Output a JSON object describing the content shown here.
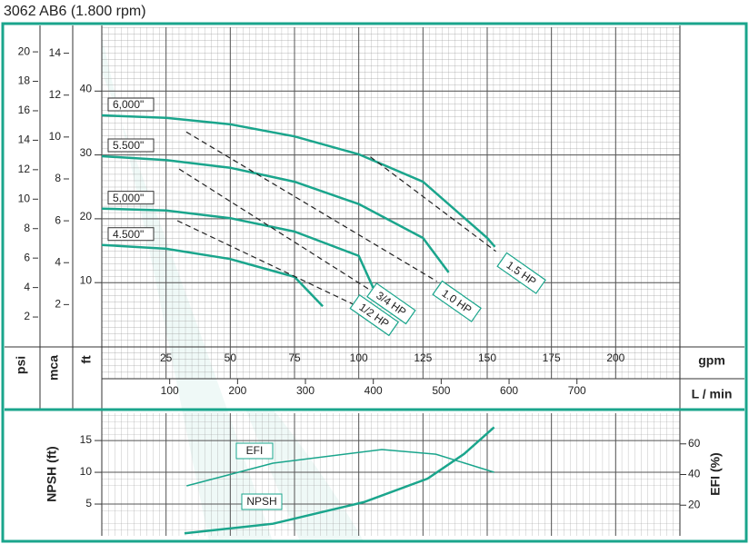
{
  "chart_data": [
    {
      "type": "line",
      "title": "3062 AB6 (1.800 rpm)",
      "color": "#1aa58c",
      "xlabel": "gpm",
      "xlim": [
        0,
        225
      ],
      "xticks": [
        25,
        50,
        75,
        100,
        125,
        150,
        175,
        200
      ],
      "ylabel": "ft",
      "ylim": [
        0,
        50
      ],
      "yticks": [
        10,
        20,
        30,
        40
      ],
      "psi_axis": {
        "label": "psi",
        "lim": [
          0,
          21.67
        ],
        "ticks": [
          2,
          4,
          6,
          8,
          10,
          12,
          14,
          16,
          18,
          20
        ]
      },
      "mca_axis": {
        "label": "mca",
        "lim": [
          0,
          15.24
        ],
        "ticks": [
          2,
          4,
          6,
          8,
          10,
          12,
          14
        ]
      },
      "lpm_axis": {
        "label": "L / min",
        "lim": [
          0,
          851.7
        ],
        "ticks": [
          100,
          200,
          300,
          400,
          500,
          600,
          700
        ]
      },
      "grid": true,
      "series": [
        {
          "name": "6,000\"",
          "color": "#1aa58c",
          "x": [
            0,
            25,
            50,
            75,
            100,
            125,
            150,
            153
          ],
          "values": [
            36.2,
            35.8,
            34.8,
            32.9,
            30.1,
            25.8,
            17.0,
            15.6
          ]
        },
        {
          "name": "5.500\"",
          "color": "#1aa58c",
          "x": [
            0,
            25,
            50,
            75,
            100,
            125,
            135
          ],
          "values": [
            29.8,
            29.2,
            28.0,
            25.8,
            22.3,
            17.0,
            11.6
          ]
        },
        {
          "name": "5,000\"",
          "color": "#1aa58c",
          "x": [
            0,
            25,
            50,
            75,
            100,
            105.6
          ],
          "values": [
            21.6,
            21.3,
            20.1,
            18.0,
            14.2,
            9.2
          ]
        },
        {
          "name": "4.500\"",
          "color": "#1aa58c",
          "x": [
            0,
            25,
            50,
            75,
            86
          ],
          "values": [
            15.9,
            15.3,
            13.7,
            10.9,
            6.3
          ]
        }
      ],
      "power_lines": [
        {
          "name": "1/2 HP",
          "color": "#222222",
          "x": [
            29.4,
            97.9
          ],
          "values": [
            19.7,
            6.6
          ]
        },
        {
          "name": "3/4 HP",
          "color": "#222222",
          "x": [
            30.1,
            103.8
          ],
          "values": [
            27.8,
            9.0
          ]
        },
        {
          "name": "1.0 HP",
          "color": "#222222",
          "x": [
            32.9,
            130.4
          ],
          "values": [
            33.6,
            10.2
          ]
        },
        {
          "name": "1.5 HP",
          "color": "#222222",
          "x": [
            104.5,
            153.4
          ],
          "values": [
            29.7,
            14.9
          ]
        }
      ]
    },
    {
      "type": "line",
      "xlim": [
        0,
        225
      ],
      "grid": true,
      "ylabel": "NPSH (ft)",
      "ylim": [
        0,
        19.3
      ],
      "yticks": [
        5,
        10,
        15
      ],
      "y2label": "EFI (%)",
      "y2lim": [
        0,
        80
      ],
      "y2ticks": [
        20,
        40,
        60
      ],
      "series": [
        {
          "name": "EFI",
          "color": "#1aa58c",
          "axis": "y2",
          "x": [
            33,
            66.6,
            109,
            130,
            152.7
          ],
          "values": [
            32.6,
            47.4,
            56.3,
            53.3,
            41.5
          ]
        },
        {
          "name": "NPSH",
          "color": "#1aa58c",
          "x": [
            32.2,
            66.6,
            102,
            126.8,
            141,
            152.7
          ],
          "values": [
            0.4,
            1.9,
            5.3,
            9.0,
            12.9,
            17.1
          ]
        }
      ]
    }
  ]
}
